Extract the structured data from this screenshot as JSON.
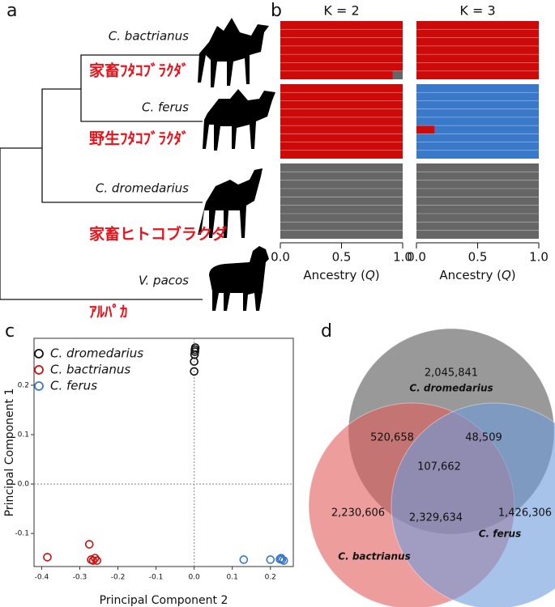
{
  "panel_labels": {
    "a": "a",
    "b": "b",
    "c": "c",
    "d": "d"
  },
  "tree": {
    "taxa": [
      {
        "name": "C. bactrianus",
        "japanese": "家畜ﾌﾀｺﾌﾞﾗｸﾀﾞ"
      },
      {
        "name": "C. ferus",
        "japanese": "野生ﾌﾀｺﾌﾞﾗｸﾀﾞ"
      },
      {
        "name": "C. dromedarius",
        "japanese": "家畜ヒトコブラクダ"
      },
      {
        "name": "V. pacos",
        "japanese": "ｱﾙﾊﾟｶ"
      }
    ]
  },
  "structure": {
    "xlabel": [
      "Ancestry (",
      "Q",
      ")"
    ],
    "xlim": [
      0,
      1
    ],
    "xticks": [
      {
        "value": 0,
        "label": "0.0"
      },
      {
        "value": 0.5,
        "label": "0.5"
      },
      {
        "value": 1,
        "label": "1.0"
      }
    ],
    "runs": [
      {
        "title": "K = 2",
        "colors": [
          "#cc0a0a",
          "#666666"
        ],
        "groups": [
          [
            [
              1,
              0
            ],
            [
              1,
              0
            ],
            [
              1,
              0
            ],
            [
              1,
              0
            ],
            [
              1,
              0
            ],
            [
              1,
              0
            ],
            [
              0.92,
              0.08
            ]
          ],
          [
            [
              1,
              0
            ],
            [
              1,
              0
            ],
            [
              1,
              0
            ],
            [
              1,
              0
            ],
            [
              1,
              0
            ],
            [
              1,
              0
            ],
            [
              1,
              0
            ],
            [
              1,
              0
            ],
            [
              1,
              0
            ]
          ],
          [
            [
              0,
              1
            ],
            [
              0,
              1
            ],
            [
              0,
              1
            ],
            [
              0,
              1
            ],
            [
              0,
              1
            ],
            [
              0,
              1
            ],
            [
              0,
              1
            ],
            [
              0,
              1
            ],
            [
              0,
              1
            ]
          ]
        ]
      },
      {
        "title": "K = 3",
        "colors": [
          "#cc0a0a",
          "#3a78c9",
          "#666666"
        ],
        "groups": [
          [
            [
              1,
              0,
              0
            ],
            [
              1,
              0,
              0
            ],
            [
              1,
              0,
              0
            ],
            [
              1,
              0,
              0
            ],
            [
              1,
              0,
              0
            ],
            [
              1,
              0,
              0
            ],
            [
              1,
              0,
              0
            ]
          ],
          [
            [
              0,
              1,
              0
            ],
            [
              0,
              1,
              0
            ],
            [
              0,
              1,
              0
            ],
            [
              0,
              1,
              0
            ],
            [
              0,
              1,
              0
            ],
            [
              0.15,
              0.85,
              0
            ],
            [
              0,
              1,
              0
            ],
            [
              0,
              1,
              0
            ],
            [
              0,
              1,
              0
            ]
          ],
          [
            [
              0,
              0,
              1
            ],
            [
              0,
              0,
              1
            ],
            [
              0,
              0,
              1
            ],
            [
              0,
              0,
              1
            ],
            [
              0,
              0,
              1
            ],
            [
              0,
              0,
              1
            ],
            [
              0,
              0,
              1
            ],
            [
              0,
              0,
              1
            ],
            [
              0,
              0,
              1
            ]
          ]
        ]
      }
    ]
  },
  "chart_data": {
    "type": "scatter",
    "xlabel": "Principal Component 2",
    "ylabel": "Principal Component 1",
    "xlim": [
      -0.42,
      0.26
    ],
    "ylim": [
      -0.167,
      0.295
    ],
    "xticks": [
      -0.4,
      -0.3,
      -0.2,
      -0.1,
      {
        "value": 0,
        "label": "0.0"
      },
      0.1,
      0.2
    ],
    "yticks": [
      -0.1,
      {
        "value": 0,
        "label": "0.0"
      },
      0.1,
      0.2
    ],
    "zero_lines": true,
    "legend": "upper left",
    "series": [
      {
        "name": "C. dromedarius",
        "color": "#111111",
        "x": [
          0,
          0,
          0.001,
          0.002,
          0.002,
          0.003
        ],
        "values": [
          0.228,
          0.248,
          0.262,
          0.268,
          0.272,
          0.276
        ]
      },
      {
        "name": "C. bactrianus",
        "color": "#cc1111",
        "x": [
          -0.385,
          -0.275,
          -0.27,
          -0.26,
          -0.255,
          -0.265
        ],
        "values": [
          -0.148,
          -0.122,
          -0.153,
          -0.15,
          -0.155,
          -0.155
        ]
      },
      {
        "name": "C. ferus",
        "color": "#3a78c9",
        "x": [
          0.13,
          0.2,
          0.225,
          0.23,
          0.235,
          0.228
        ],
        "values": [
          -0.153,
          -0.153,
          -0.152,
          -0.153,
          -0.155,
          -0.15
        ]
      }
    ]
  },
  "venn": {
    "sets": [
      {
        "name": "C. dromedarius",
        "color": "#555555"
      },
      {
        "name": "C. bactrianus",
        "color": "#e35b5b"
      },
      {
        "name": "C. ferus",
        "color": "#6c9bdb"
      }
    ],
    "regions": [
      "2,045,841",
      "520,658",
      "48,509",
      "107,662",
      "2,230,606",
      "2,329,634",
      "1,426,306"
    ]
  }
}
